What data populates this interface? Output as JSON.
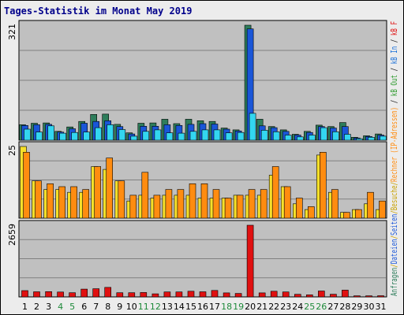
{
  "chart_data": {
    "type": "bar",
    "title": "Tages-Statistik im Monat May 2019",
    "days": [
      "1",
      "2",
      "3",
      "4",
      "5",
      "6",
      "7",
      "8",
      "9",
      "10",
      "11",
      "12",
      "13",
      "14",
      "15",
      "16",
      "17",
      "18",
      "19",
      "20",
      "21",
      "22",
      "23",
      "24",
      "25",
      "26",
      "27",
      "28",
      "29",
      "30",
      "31"
    ],
    "weekend_days": [
      "4",
      "5",
      "11",
      "12",
      "18",
      "19",
      "25",
      "26"
    ],
    "panels": [
      {
        "axis_max": "321",
        "series": [
          {
            "name": "Anfragen",
            "color": "#2e7d5b",
            "values": [
              42,
              46,
              47,
              24,
              36,
              51,
              70,
              71,
              43,
              20,
              46,
              47,
              57,
              45,
              57,
              53,
              51,
              33,
              28,
              313,
              57,
              37,
              28,
              16,
              24,
              41,
              37,
              48,
              8,
              12,
              17
            ]
          },
          {
            "name": "Dateien",
            "color": "#1a56d8",
            "values": [
              40,
              42,
              43,
              22,
              31,
              46,
              51,
              53,
              37,
              17,
              38,
              38,
              42,
              40,
              43,
              45,
              44,
              30,
              25,
              303,
              39,
              34,
              24,
              14,
              21,
              37,
              33,
              37,
              6,
              10,
              14
            ]
          },
          {
            "name": "Seiten",
            "color": "#33d6f0",
            "values": [
              30,
              22,
              39,
              19,
              21,
              22,
              34,
              42,
              29,
              11,
              24,
              28,
              20,
              19,
              24,
              28,
              28,
              20,
              21,
              73,
              27,
              23,
              14,
              9,
              14,
              34,
              23,
              16,
              4,
              8,
              11
            ]
          }
        ]
      },
      {
        "axis_max": "25",
        "series": [
          {
            "name": "Besuche",
            "color": "#f7e02a",
            "values": [
              25,
              13,
              10,
              10,
              9,
              9,
              18,
              17,
              13,
              6,
              8,
              7,
              8,
              8,
              8,
              7,
              7,
              7,
              8,
              8,
              8,
              15,
              11,
              5,
              3,
              22,
              9,
              2,
              3,
              5,
              3
            ]
          },
          {
            "name": "Rechner (IP-Adressen)",
            "color": "#ff8c10",
            "values": [
              23,
              13,
              12,
              11,
              11,
              10,
              18,
              21,
              13,
              8,
              16,
              8,
              10,
              10,
              12,
              12,
              10,
              7,
              8,
              10,
              10,
              18,
              11,
              7,
              4,
              23,
              10,
              2,
              3,
              9,
              6
            ]
          }
        ]
      },
      {
        "axis_max": "2659",
        "series": [
          {
            "name": "kB F",
            "color": "#e01010",
            "values": [
              235,
              190,
              195,
              180,
              155,
              290,
              305,
              355,
              155,
              155,
              165,
              115,
              185,
              185,
              210,
              190,
              240,
              150,
              130,
              2659,
              150,
              210,
              185,
              95,
              75,
              220,
              100,
              250,
              40,
              40,
              45
            ]
          }
        ]
      }
    ],
    "right_axis_labels": [
      {
        "text": "Anfragen",
        "color": "#2e7d5b"
      },
      {
        "text": "/",
        "color": "#c8a000"
      },
      {
        "text": "Dateien",
        "color": "#1a56d8"
      },
      {
        "text": "/",
        "color": "#c8a000"
      },
      {
        "text": "Seiten",
        "color": "#1a56d8"
      },
      {
        "text": "/",
        "color": "#c8a000"
      },
      {
        "text": "Besuche",
        "color": "#c8a000"
      },
      {
        "text": "/",
        "color": "#c8a000"
      },
      {
        "text": "Rechner (IP-Adressen)",
        "color": "#ff8c10"
      },
      {
        "text": " / ",
        "color": "#222222"
      },
      {
        "text": "kB Out",
        "color": "#2e9a2e"
      },
      {
        "text": " / ",
        "color": "#222222"
      },
      {
        "text": "kB In",
        "color": "#1a70d8"
      },
      {
        "text": " / ",
        "color": "#222222"
      },
      {
        "text": "kB F",
        "color": "#e01010"
      }
    ]
  }
}
